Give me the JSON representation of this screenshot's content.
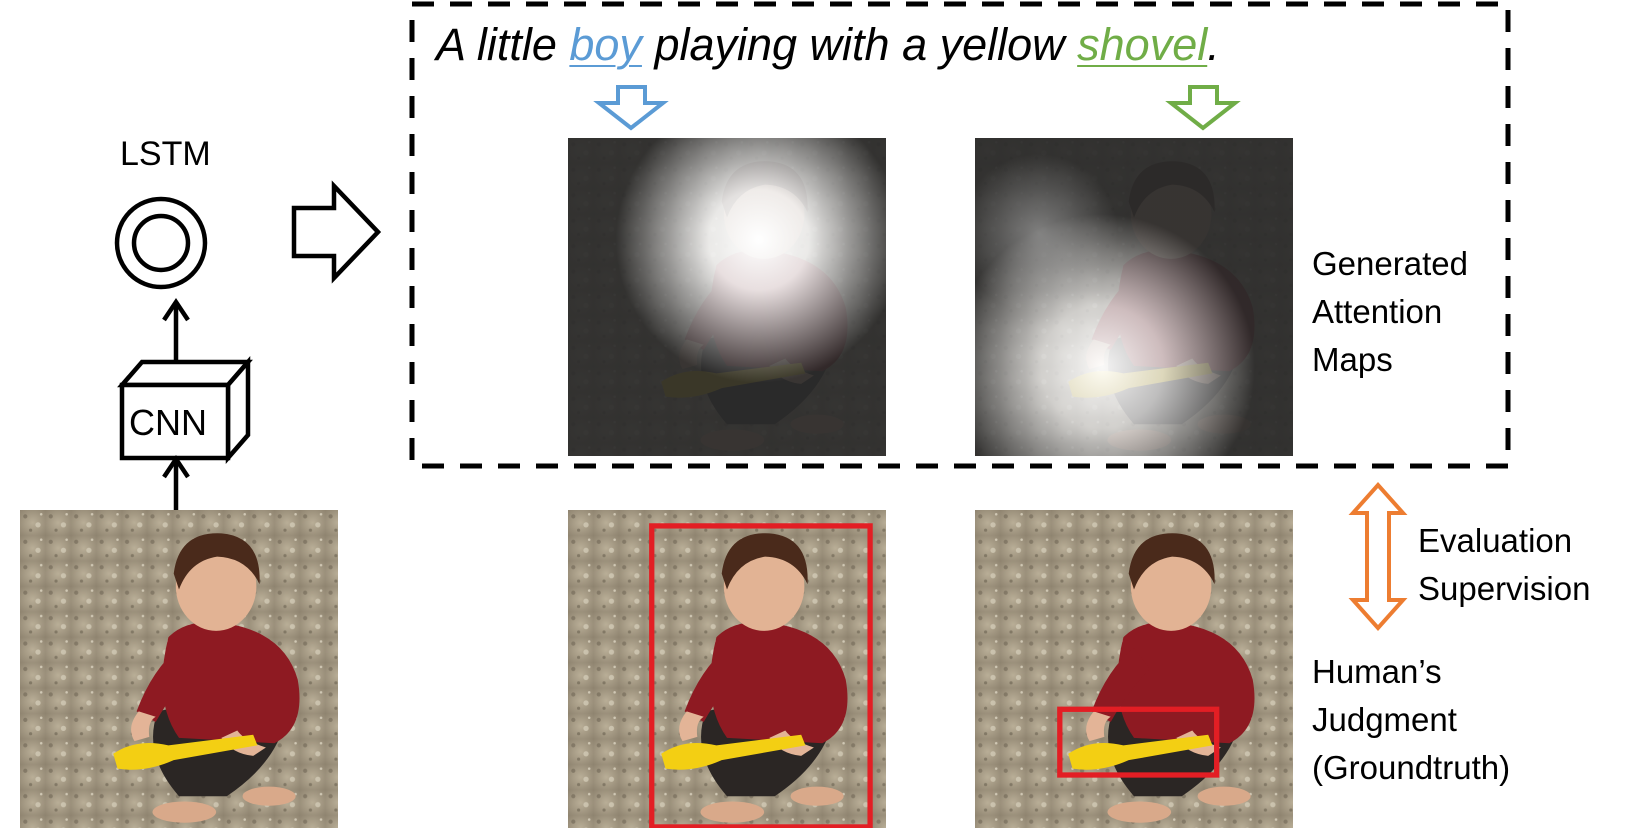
{
  "caption": {
    "prefix": "A little ",
    "word1": "boy",
    "middle": " playing with a yellow ",
    "word2": "shovel",
    "suffix": "."
  },
  "model": {
    "lstm_label": "LSTM",
    "cnn_label": "CNN"
  },
  "attention_label": {
    "line1": "Generated",
    "line2": "Attention",
    "line3": "Maps"
  },
  "evaluation_label": {
    "line1": "Evaluation",
    "line2": "Supervision"
  },
  "judgment_label": {
    "line1": "Human’s",
    "line2": "Judgment",
    "line3": "(Groundtruth)"
  },
  "colors": {
    "boy_accent": "#5b9bd5",
    "shovel_accent": "#70ad47",
    "bounding_box": "#e31e24",
    "double_arrow": "#ed7d31"
  }
}
